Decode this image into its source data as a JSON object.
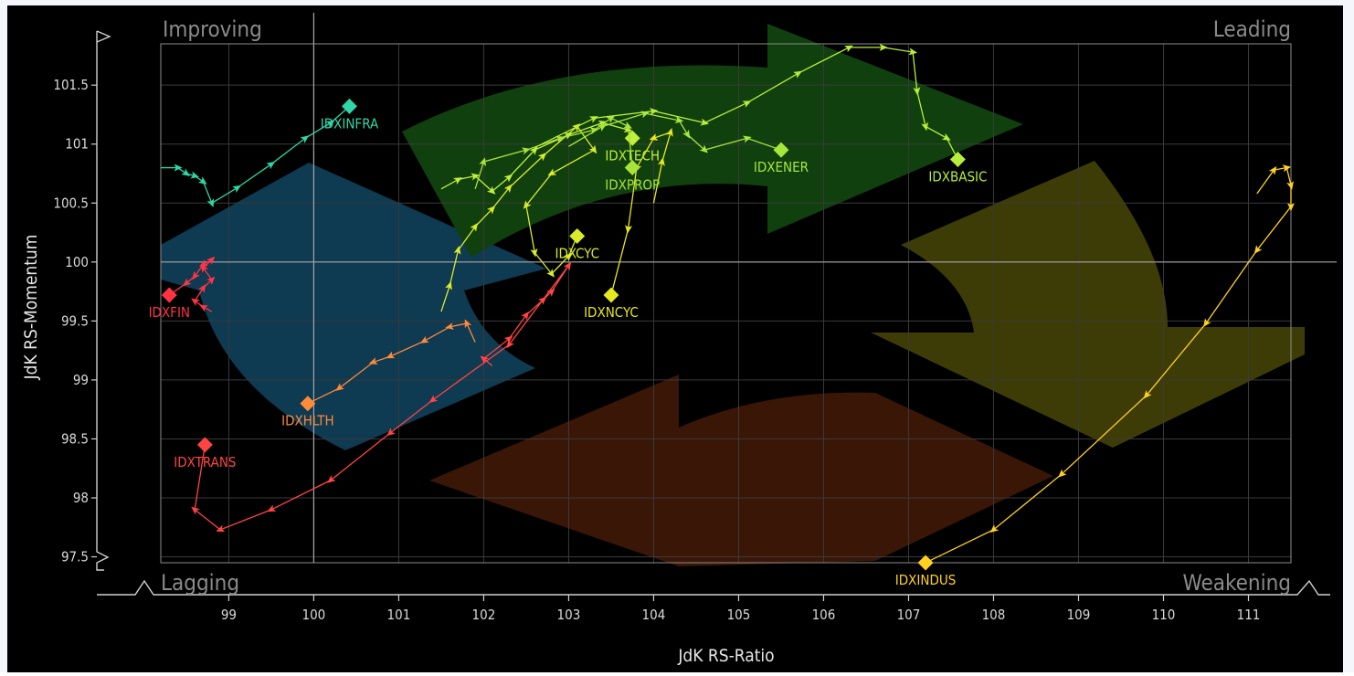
{
  "chart_data": {
    "type": "scatter",
    "subtype": "relative-rotation-graph",
    "xlabel": "JdK RS-Ratio",
    "ylabel": "JdK RS-Momentum",
    "xlim": [
      98.2,
      111.5
    ],
    "ylim": [
      97.45,
      101.85
    ],
    "x_center": 100,
    "y_center": 100,
    "x_ticks": [
      99,
      100,
      101,
      102,
      103,
      104,
      105,
      106,
      107,
      108,
      109,
      110,
      111
    ],
    "y_ticks": [
      97.5,
      98,
      98.5,
      99,
      99.5,
      100,
      100.5,
      101,
      101.5
    ],
    "grid": true,
    "quadrants": {
      "top_left": "Improving",
      "top_right": "Leading",
      "bottom_left": "Lagging",
      "bottom_right": "Weakening"
    },
    "quadrant_colors": {
      "improving": "#0e3a52",
      "leading": "#11400f",
      "weakening": "#3e3c06",
      "lagging": "#3a1606"
    },
    "series": [
      {
        "name": "IDXINFRA",
        "color": "#2fd6a8",
        "points": [
          [
            98.2,
            100.8
          ],
          [
            98.4,
            100.8
          ],
          [
            98.5,
            100.75
          ],
          [
            98.6,
            100.73
          ],
          [
            98.7,
            100.68
          ],
          [
            98.8,
            100.5
          ],
          [
            99.1,
            100.63
          ],
          [
            99.5,
            100.83
          ],
          [
            99.9,
            101.05
          ],
          [
            100.2,
            101.18
          ],
          [
            100.42,
            101.32
          ]
        ]
      },
      {
        "name": "IDXFIN",
        "color": "#ff3344",
        "points": [
          [
            98.8,
            99.58
          ],
          [
            98.7,
            99.62
          ],
          [
            98.6,
            99.67
          ],
          [
            98.7,
            99.78
          ],
          [
            98.8,
            99.85
          ],
          [
            98.7,
            99.95
          ],
          [
            98.8,
            100.02
          ],
          [
            98.7,
            99.98
          ],
          [
            98.6,
            99.88
          ],
          [
            98.5,
            99.82
          ],
          [
            98.3,
            99.72
          ]
        ]
      },
      {
        "name": "IDXTRANS",
        "color": "#ff4444",
        "points": [
          [
            102.1,
            99.12
          ],
          [
            102.0,
            99.18
          ],
          [
            102.3,
            99.35
          ],
          [
            102.5,
            99.55
          ],
          [
            102.7,
            99.68
          ],
          [
            102.8,
            99.75
          ],
          [
            103.0,
            99.97
          ],
          [
            102.3,
            99.3
          ],
          [
            101.4,
            98.83
          ],
          [
            100.9,
            98.55
          ],
          [
            100.2,
            98.15
          ],
          [
            99.5,
            97.9
          ],
          [
            98.9,
            97.73
          ],
          [
            98.6,
            97.9
          ],
          [
            98.72,
            98.45
          ]
        ]
      },
      {
        "name": "IDXHLTH",
        "color": "#ff8a3a",
        "points": [
          [
            101.9,
            99.32
          ],
          [
            101.8,
            99.48
          ],
          [
            101.6,
            99.45
          ],
          [
            101.3,
            99.33
          ],
          [
            100.9,
            99.2
          ],
          [
            100.7,
            99.15
          ],
          [
            100.3,
            98.93
          ],
          [
            99.93,
            98.8
          ]
        ]
      },
      {
        "name": "IDXCYC",
        "color": "#d8ec2a",
        "points": [
          [
            101.5,
            99.58
          ],
          [
            101.6,
            99.8
          ],
          [
            101.7,
            100.1
          ],
          [
            101.9,
            100.3
          ],
          [
            102.1,
            100.45
          ],
          [
            102.3,
            100.63
          ],
          [
            102.7,
            100.9
          ],
          [
            103.1,
            101.15
          ],
          [
            103.3,
            100.95
          ],
          [
            102.8,
            100.75
          ],
          [
            102.5,
            100.48
          ],
          [
            102.6,
            100.08
          ],
          [
            102.8,
            99.9
          ],
          [
            103.0,
            100.05
          ],
          [
            103.1,
            100.22
          ]
        ]
      },
      {
        "name": "IDXNCYC",
        "color": "#e8e81e",
        "points": [
          [
            104.0,
            100.5
          ],
          [
            104.1,
            100.85
          ],
          [
            104.2,
            101.1
          ],
          [
            104.0,
            101.05
          ],
          [
            103.8,
            100.8
          ],
          [
            103.7,
            100.28
          ],
          [
            103.5,
            99.72
          ]
        ]
      },
      {
        "name": "IDXTECH",
        "color": "#bff03a",
        "points": [
          [
            101.5,
            100.62
          ],
          [
            101.7,
            100.7
          ],
          [
            101.9,
            100.73
          ],
          [
            102.1,
            100.6
          ],
          [
            102.3,
            100.72
          ],
          [
            102.6,
            100.95
          ],
          [
            103.0,
            101.08
          ],
          [
            103.4,
            101.18
          ],
          [
            103.7,
            101.12
          ],
          [
            103.75,
            101.05
          ]
        ]
      },
      {
        "name": "IDXPROP",
        "color": "#a8e23a",
        "points": [
          [
            101.9,
            100.62
          ],
          [
            102.0,
            100.85
          ],
          [
            102.5,
            100.95
          ],
          [
            102.9,
            101.05
          ],
          [
            103.3,
            101.12
          ],
          [
            103.5,
            101.22
          ],
          [
            103.7,
            101.15
          ],
          [
            103.75,
            100.8
          ]
        ]
      },
      {
        "name": "IDXENER",
        "color": "#a6e83a",
        "points": [
          [
            103.0,
            100.98
          ],
          [
            103.4,
            101.15
          ],
          [
            103.9,
            101.26
          ],
          [
            104.3,
            101.2
          ],
          [
            104.4,
            101.08
          ],
          [
            104.6,
            100.95
          ],
          [
            105.1,
            101.05
          ],
          [
            105.5,
            100.95
          ]
        ]
      },
      {
        "name": "IDXBASIC",
        "color": "#b6ee3a",
        "points": [
          [
            102.6,
            100.97
          ],
          [
            103.3,
            101.22
          ],
          [
            104.0,
            101.28
          ],
          [
            104.6,
            101.18
          ],
          [
            105.1,
            101.35
          ],
          [
            105.7,
            101.6
          ],
          [
            106.3,
            101.82
          ],
          [
            106.7,
            101.82
          ],
          [
            107.05,
            101.78
          ],
          [
            107.1,
            101.45
          ],
          [
            107.2,
            101.15
          ],
          [
            107.45,
            101.05
          ],
          [
            107.58,
            100.87
          ]
        ]
      },
      {
        "name": "IDXINDUS",
        "color": "#ffd21e",
        "points": [
          [
            111.1,
            100.58
          ],
          [
            111.3,
            100.78
          ],
          [
            111.45,
            100.8
          ],
          [
            111.5,
            100.65
          ],
          [
            111.5,
            100.47
          ],
          [
            111.1,
            100.1
          ],
          [
            110.5,
            99.48
          ],
          [
            109.8,
            98.87
          ],
          [
            108.8,
            98.2
          ],
          [
            108.0,
            97.73
          ],
          [
            107.2,
            97.45
          ]
        ]
      }
    ]
  }
}
